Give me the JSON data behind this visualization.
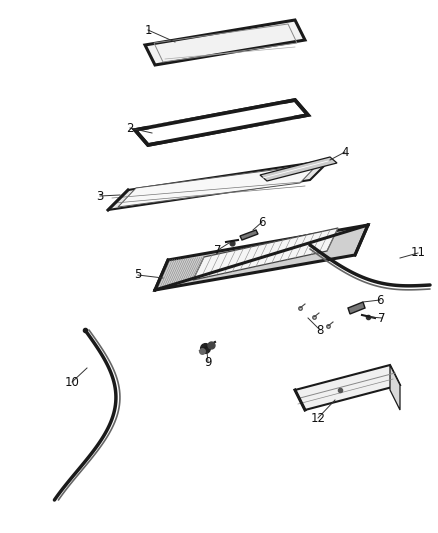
{
  "background_color": "#ffffff",
  "fig_width": 4.38,
  "fig_height": 5.33,
  "dpi": 100
}
